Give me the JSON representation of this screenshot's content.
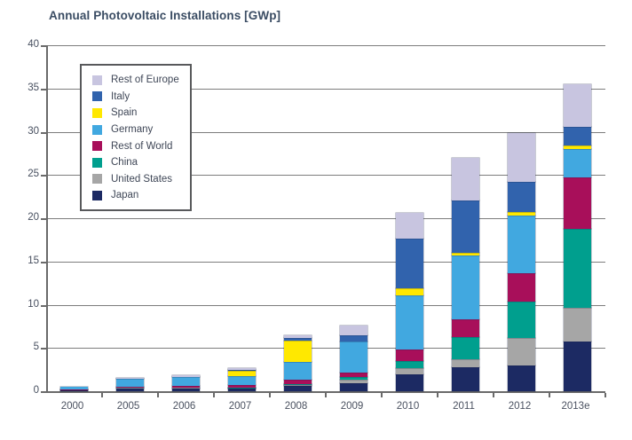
{
  "chart_data": {
    "type": "bar",
    "stacked": true,
    "title": "Annual Photovoltaic Installations [GWp]",
    "xlabel": "",
    "ylabel": "",
    "ylim": [
      0,
      40
    ],
    "yticks": [
      0,
      5,
      10,
      15,
      20,
      25,
      30,
      35,
      40
    ],
    "grid": true,
    "legend_position": "top-left-inside",
    "categories": [
      "2000",
      "2005",
      "2006",
      "2007",
      "2008",
      "2009",
      "2010",
      "2011",
      "2012",
      "2013e"
    ],
    "series": [
      {
        "name": "Japan",
        "color": "#1c2a63",
        "values": [
          0.15,
          0.35,
          0.3,
          0.3,
          0.6,
          0.9,
          1.9,
          2.8,
          3.0,
          5.7
        ]
      },
      {
        "name": "United States",
        "color": "#a6a6a6",
        "values": [
          0.05,
          0.1,
          0.1,
          0.1,
          0.2,
          0.4,
          0.75,
          0.85,
          3.2,
          3.9
        ]
      },
      {
        "name": "China",
        "color": "#009f8e",
        "values": [
          0.0,
          0.0,
          0.0,
          0.02,
          0.05,
          0.35,
          0.8,
          2.65,
          4.2,
          9.2
        ]
      },
      {
        "name": "Rest of World",
        "color": "#a80f5a",
        "values": [
          0.05,
          0.05,
          0.2,
          0.25,
          0.5,
          0.5,
          1.4,
          2.05,
          3.2,
          5.95
        ]
      },
      {
        "name": "Germany",
        "color": "#41a8e0",
        "values": [
          0.25,
          0.95,
          1.0,
          1.1,
          2.0,
          3.55,
          6.2,
          7.3,
          6.7,
          3.3
        ]
      },
      {
        "name": "Spain",
        "color": "#ffe800",
        "values": [
          0.0,
          0.0,
          0.0,
          0.6,
          2.45,
          0.0,
          0.8,
          0.4,
          0.4,
          0.4
        ]
      },
      {
        "name": "Italy",
        "color": "#3163ad",
        "values": [
          0.0,
          0.0,
          0.0,
          0.1,
          0.35,
          0.8,
          5.75,
          6.0,
          3.5,
          2.1
        ]
      },
      {
        "name": "Rest of Europe",
        "color": "#c8c5e0",
        "values": [
          0.0,
          0.05,
          0.2,
          0.2,
          0.27,
          1.1,
          3.0,
          4.9,
          5.7,
          4.9
        ]
      }
    ],
    "legend_order": [
      "Rest of Europe",
      "Italy",
      "Spain",
      "Germany",
      "Rest of World",
      "China",
      "United States",
      "Japan"
    ]
  },
  "colors": {
    "title_text": "#3a4c63",
    "axis_text": "#4a5160",
    "gridline": "#7d7d7d",
    "axis_line": "#6a6a6a",
    "background": "#ffffff"
  }
}
